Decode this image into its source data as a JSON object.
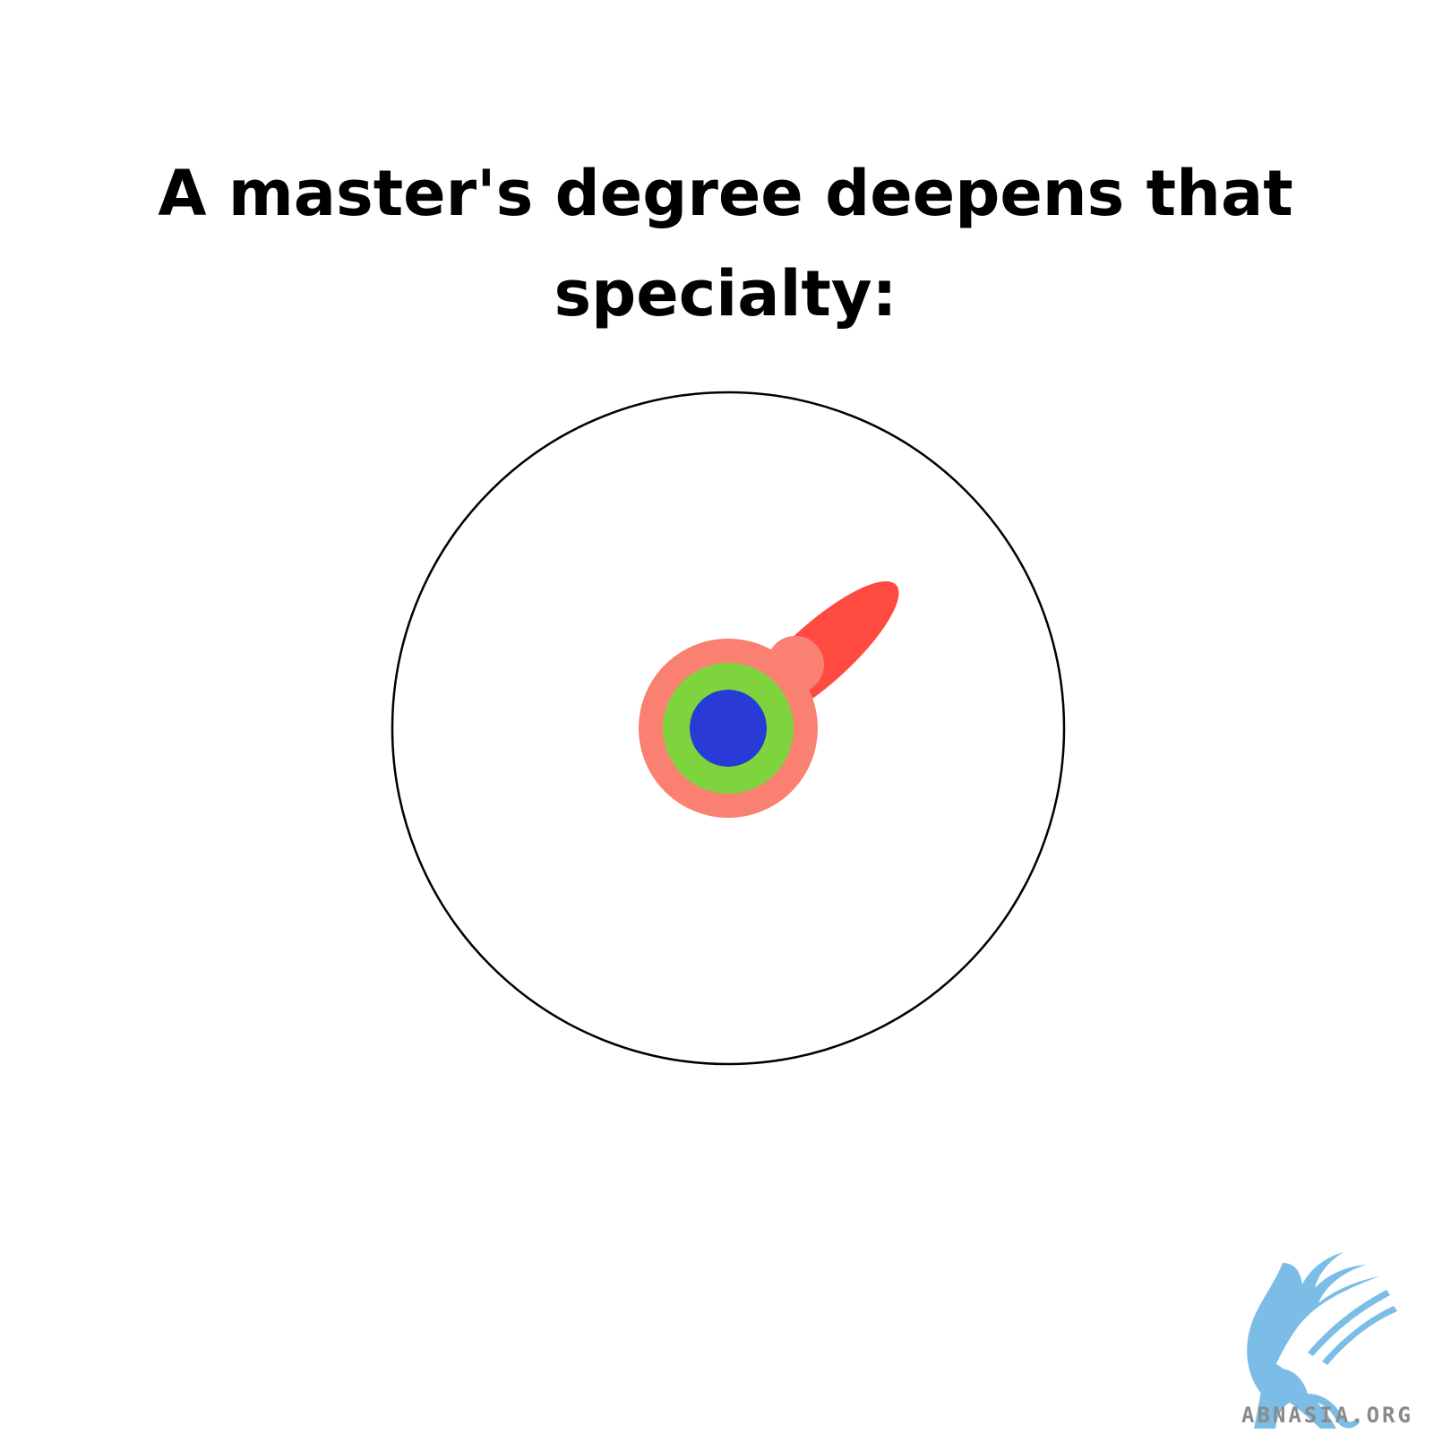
{
  "title": "A master's degree deepens that specialty:",
  "diagram": {
    "outer_circle_stroke": "#000000",
    "outer_ring_color": "#fa8072",
    "middle_ring_color": "#7ed43c",
    "core_color": "#2a3ad6",
    "spike_color": "#ff4a42"
  },
  "logo": {
    "text": "ABNASIA.ORG",
    "color": "#7bbde6"
  }
}
